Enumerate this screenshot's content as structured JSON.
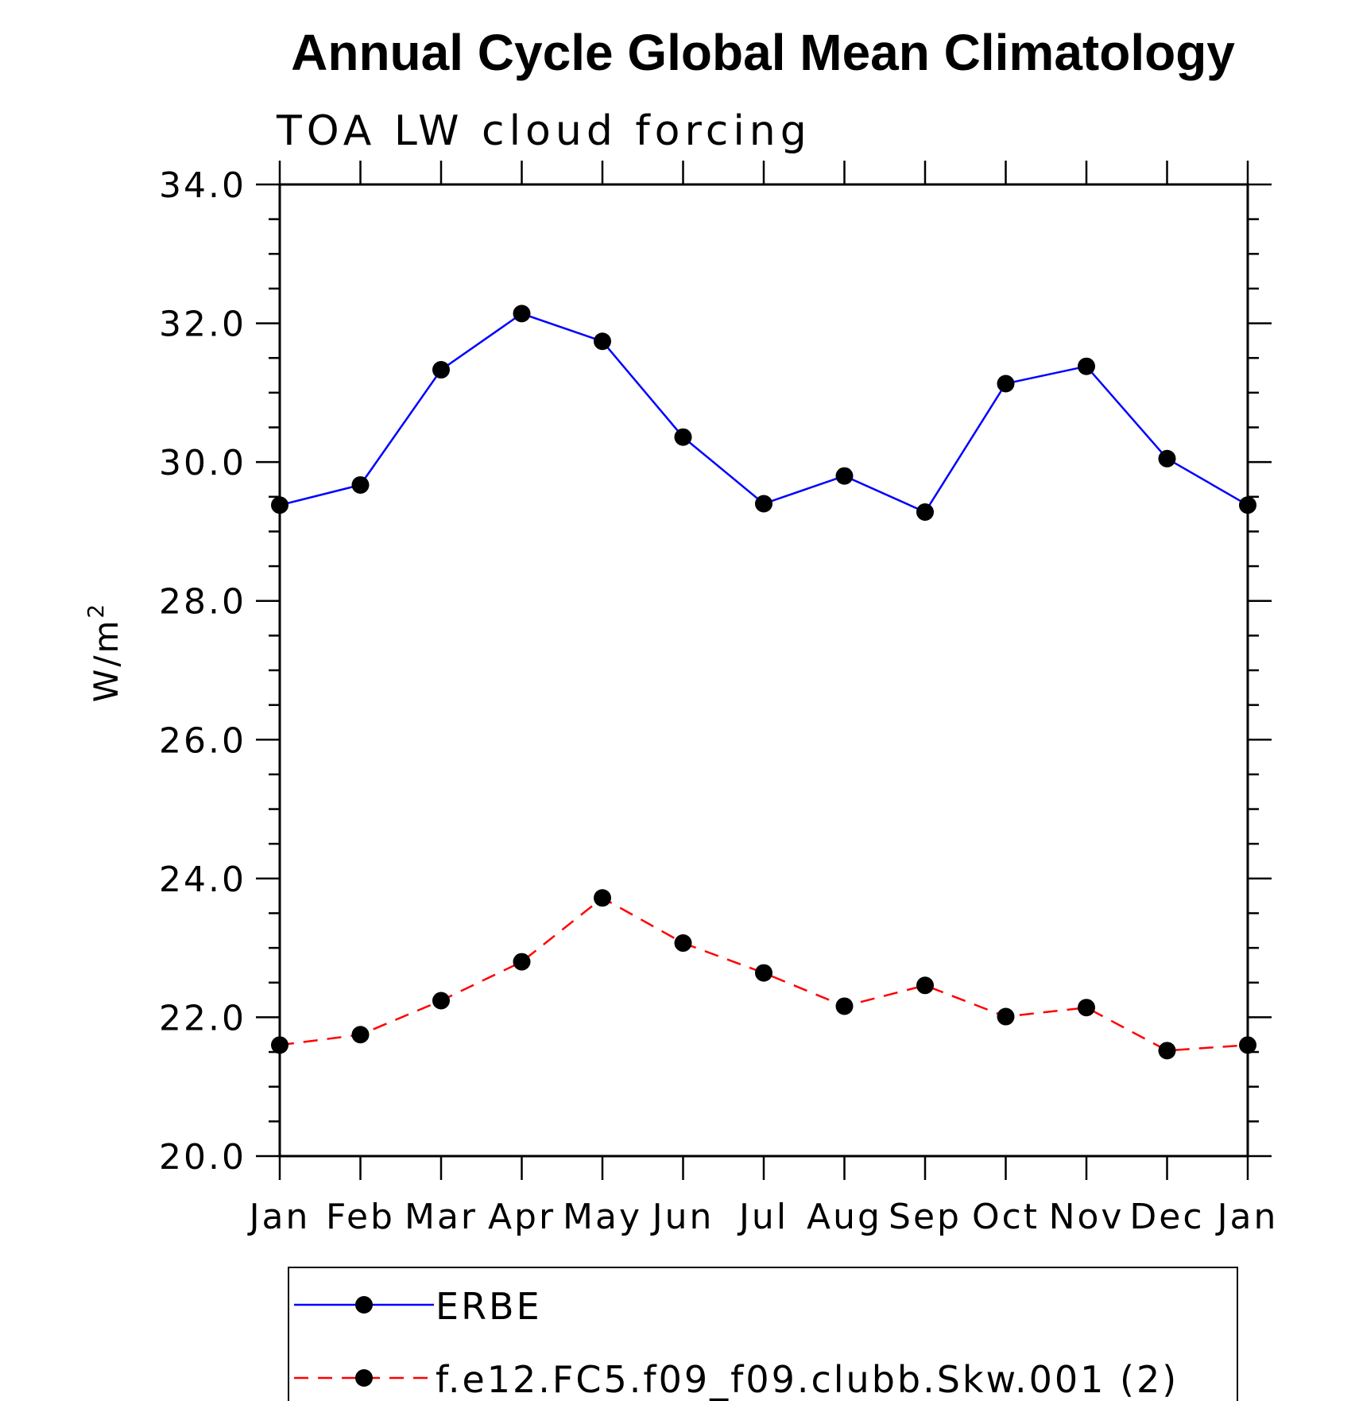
{
  "chart_data": {
    "type": "line",
    "title": "Annual Cycle Global Mean Climatology",
    "subtitle": "TOA LW cloud forcing",
    "ylabel": "W/m",
    "ylabel_superscript": "2",
    "ylim": [
      20,
      34
    ],
    "yticks": [
      "20.0",
      "22.0",
      "24.0",
      "26.0",
      "28.0",
      "30.0",
      "32.0",
      "34.0"
    ],
    "categories": [
      "Jan",
      "Feb",
      "Mar",
      "Apr",
      "May",
      "Jun",
      "Jul",
      "Aug",
      "Sep",
      "Oct",
      "Nov",
      "Dec",
      "Jan"
    ],
    "grid": false,
    "legend_position": "bottom",
    "series": [
      {
        "name": "ERBE",
        "color": "#0000ff",
        "line_style": "solid",
        "marker": "filled-circle",
        "values": [
          29.38,
          29.67,
          31.33,
          32.14,
          31.74,
          30.36,
          29.4,
          29.8,
          29.28,
          31.13,
          31.38,
          30.05,
          29.38
        ]
      },
      {
        "name": "f.e12.FC5.f09_f09.clubb.Skw.001 (2)",
        "color": "#ff0000",
        "line_style": "dashed",
        "marker": "filled-circle",
        "values": [
          21.6,
          21.75,
          22.24,
          22.8,
          23.72,
          23.07,
          22.64,
          22.16,
          22.46,
          22.01,
          22.14,
          21.52,
          21.6
        ]
      }
    ]
  }
}
